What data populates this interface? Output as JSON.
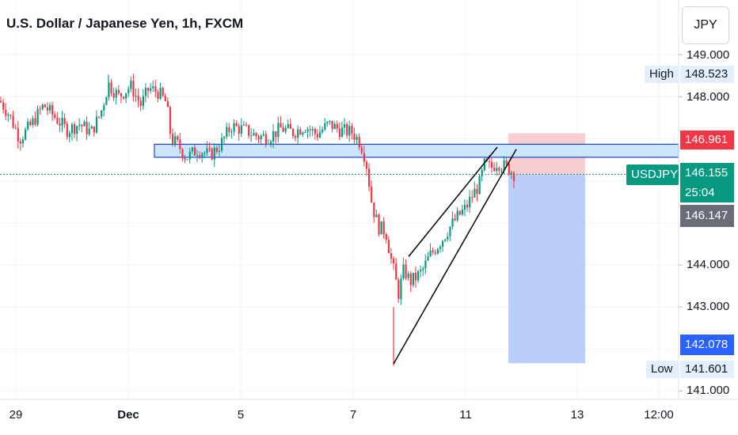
{
  "header": {
    "title": "U.S. Dollar / Japanese Yen, 1h, FXCM",
    "currency_button": "JPY"
  },
  "price_axis": {
    "ticks": [
      "149.000",
      "148.000",
      "144.000",
      "143.000",
      "141.000"
    ],
    "tick_values": [
      149.0,
      148.0,
      144.0,
      143.0,
      141.0
    ]
  },
  "tags": {
    "high_label": "High",
    "high_value": "148.523",
    "stop_value": "146.961",
    "symbol": "USDJPY",
    "last_price": "146.155",
    "countdown": "25:04",
    "entry_value": "146.147",
    "target_value": "142.078",
    "low_label": "Low",
    "low_value": "141.601"
  },
  "time_axis": {
    "labels": [
      "29",
      "Dec",
      "5",
      "7",
      "11",
      "13",
      "12:00"
    ]
  },
  "colors": {
    "up": "#089981",
    "down": "#f23645",
    "stop_zone": "#f7c7c9",
    "target_zone": "#b4c8f8",
    "support_zone": "#cbe6fa",
    "support_border": "#1e40d6",
    "symbol_tag": "#089981",
    "stop_tag": "#f23645",
    "target_tag": "#2962ff",
    "entry_tag": "#6a6d78"
  },
  "chart_data": {
    "type": "candlestick",
    "symbol": "USDJPY",
    "interval": "1h",
    "x_labels": [
      "29",
      "Dec",
      "5",
      "7",
      "11",
      "13",
      "12:00"
    ],
    "ylim": [
      141.0,
      149.5
    ],
    "high": 148.523,
    "low": 141.601,
    "last": 146.155,
    "close_path": [
      {
        "x": 0,
        "y": 147.9
      },
      {
        "x": 12,
        "y": 147.55
      },
      {
        "x": 25,
        "y": 147.0
      },
      {
        "x": 40,
        "y": 147.35
      },
      {
        "x": 55,
        "y": 147.8
      },
      {
        "x": 70,
        "y": 147.5
      },
      {
        "x": 85,
        "y": 147.2
      },
      {
        "x": 100,
        "y": 147.35
      },
      {
        "x": 115,
        "y": 147.15
      },
      {
        "x": 127,
        "y": 147.6
      },
      {
        "x": 137,
        "y": 148.3
      },
      {
        "x": 150,
        "y": 148.0
      },
      {
        "x": 165,
        "y": 148.25
      },
      {
        "x": 178,
        "y": 147.8
      },
      {
        "x": 188,
        "y": 148.2
      },
      {
        "x": 200,
        "y": 148.1
      },
      {
        "x": 210,
        "y": 147.85
      },
      {
        "x": 216,
        "y": 147.0
      },
      {
        "x": 225,
        "y": 146.85
      },
      {
        "x": 235,
        "y": 146.55
      },
      {
        "x": 250,
        "y": 146.75
      },
      {
        "x": 265,
        "y": 146.6
      },
      {
        "x": 278,
        "y": 146.85
      },
      {
        "x": 292,
        "y": 147.3
      },
      {
        "x": 310,
        "y": 147.2
      },
      {
        "x": 325,
        "y": 147.05
      },
      {
        "x": 340,
        "y": 147.05
      },
      {
        "x": 355,
        "y": 147.25
      },
      {
        "x": 370,
        "y": 147.15
      },
      {
        "x": 385,
        "y": 147.3
      },
      {
        "x": 400,
        "y": 147.1
      },
      {
        "x": 415,
        "y": 147.35
      },
      {
        "x": 430,
        "y": 147.2
      },
      {
        "x": 445,
        "y": 147.15
      },
      {
        "x": 455,
        "y": 146.9
      },
      {
        "x": 462,
        "y": 146.5
      },
      {
        "x": 470,
        "y": 145.4
      },
      {
        "x": 478,
        "y": 144.9
      },
      {
        "x": 487,
        "y": 144.8
      },
      {
        "x": 493,
        "y": 144.2
      },
      {
        "x": 498,
        "y": 143.8
      },
      {
        "x": 503,
        "y": 143.3
      },
      {
        "x": 510,
        "y": 143.9
      },
      {
        "x": 518,
        "y": 143.6
      },
      {
        "x": 525,
        "y": 143.7
      },
      {
        "x": 533,
        "y": 143.85
      },
      {
        "x": 542,
        "y": 144.2
      },
      {
        "x": 550,
        "y": 144.4
      },
      {
        "x": 558,
        "y": 144.6
      },
      {
        "x": 568,
        "y": 144.9
      },
      {
        "x": 578,
        "y": 145.15
      },
      {
        "x": 588,
        "y": 145.35
      },
      {
        "x": 598,
        "y": 145.7
      },
      {
        "x": 605,
        "y": 145.9
      },
      {
        "x": 612,
        "y": 146.4
      },
      {
        "x": 620,
        "y": 146.3
      },
      {
        "x": 628,
        "y": 146.45
      },
      {
        "x": 636,
        "y": 146.35
      },
      {
        "x": 642,
        "y": 146.3
      },
      {
        "x": 650,
        "y": 146.15
      }
    ],
    "support_zone": [
      146.55,
      146.85
    ],
    "rising_wedge": {
      "upper": [
        {
          "x": 516,
          "y": 144.2
        },
        {
          "x": 628,
          "y": 146.8
        }
      ],
      "lower": [
        {
          "x": 497,
          "y": 141.65
        },
        {
          "x": 652,
          "y": 146.75
        }
      ]
    },
    "short_position": {
      "entry": 146.147,
      "stop": 146.961,
      "target": 142.078
    }
  }
}
